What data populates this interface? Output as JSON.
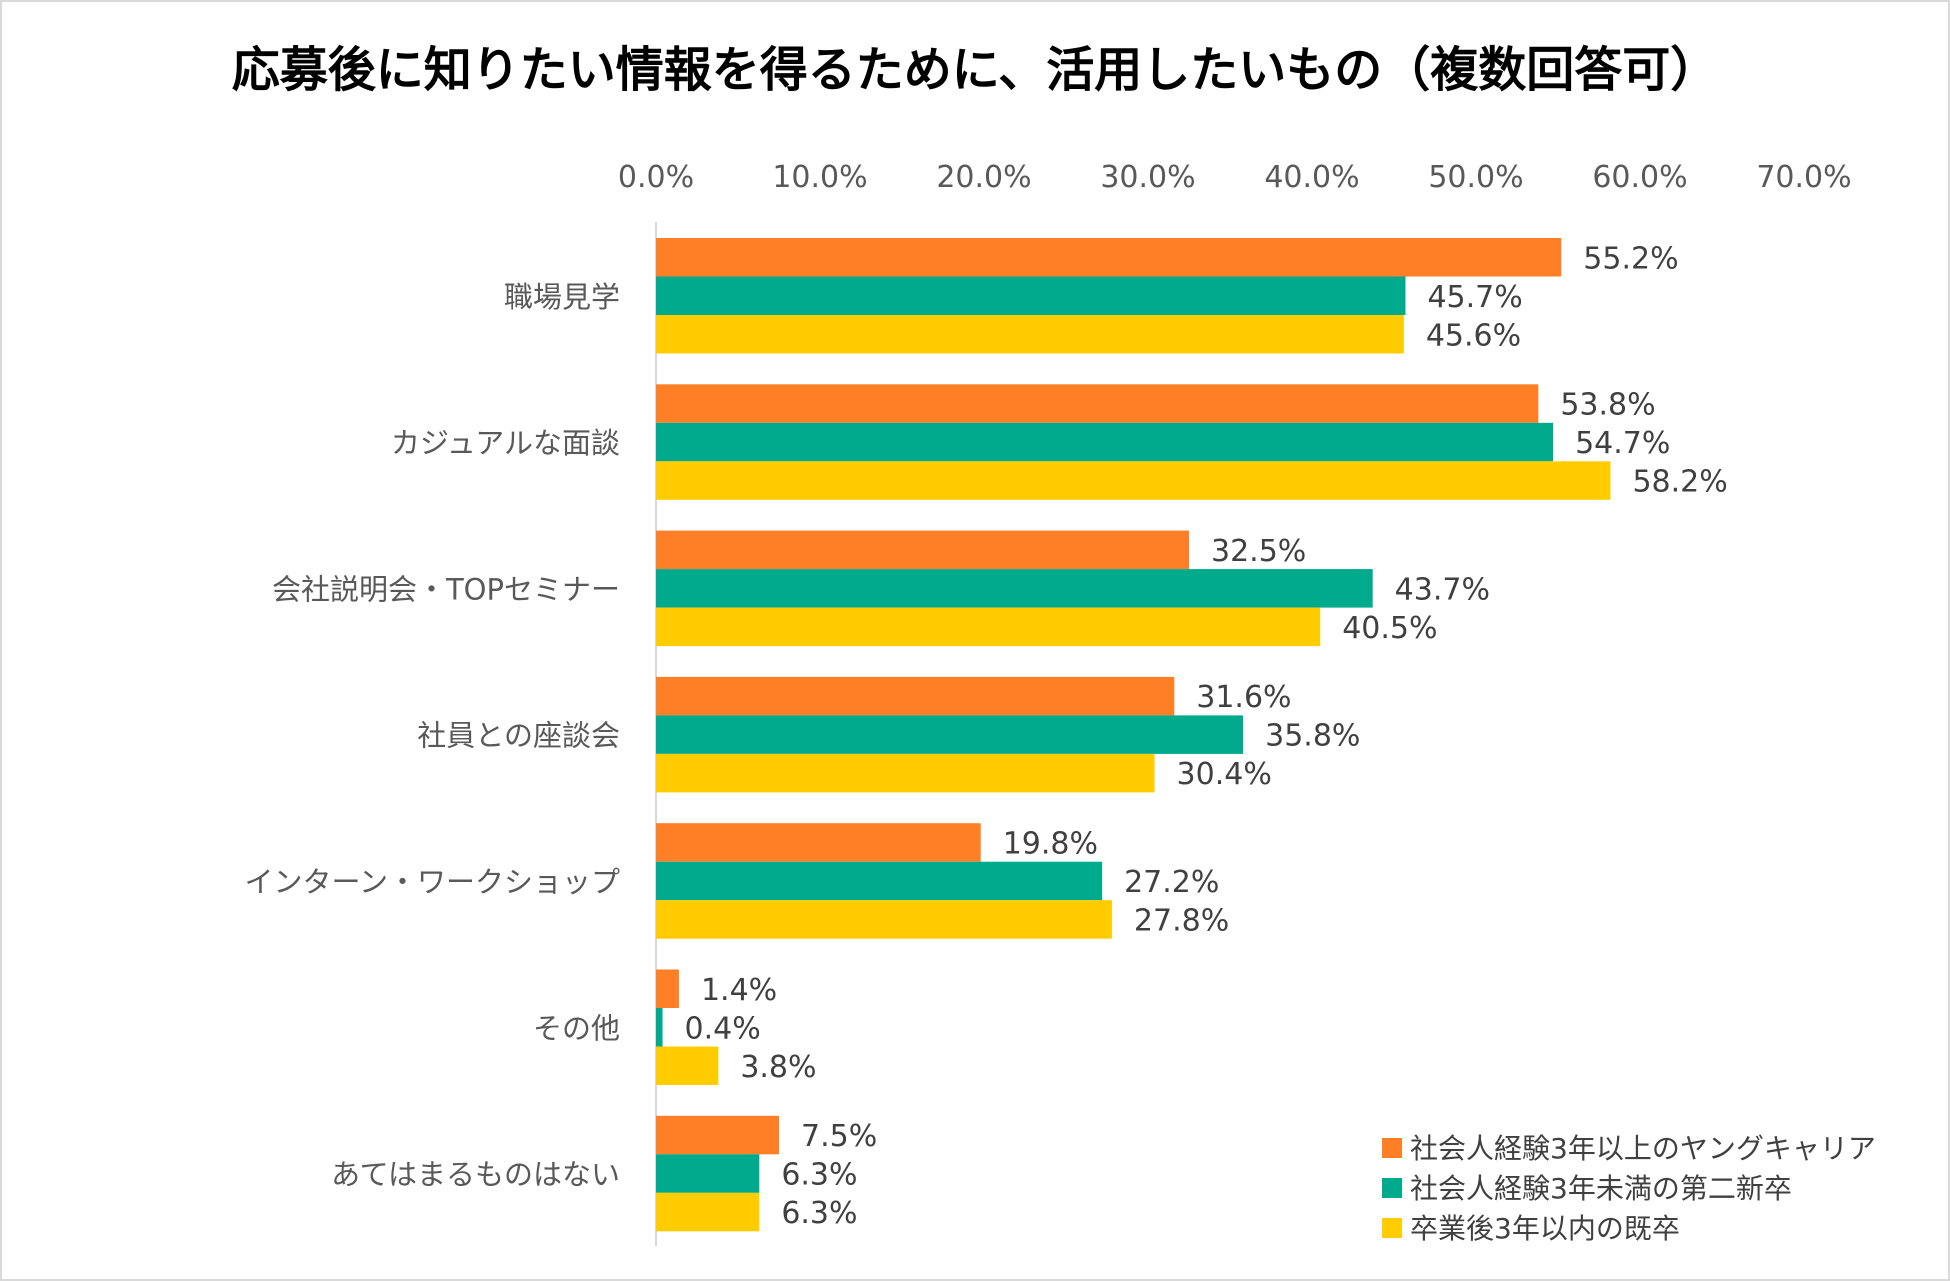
{
  "chart_data": {
    "type": "bar",
    "orientation": "horizontal",
    "title": "応募後に知りたい情報を得るために、活用したいもの（複数回答可）",
    "xlim": [
      0,
      70
    ],
    "xticks": [
      "0.0%",
      "10.0%",
      "20.0%",
      "30.0%",
      "40.0%",
      "50.0%",
      "60.0%",
      "70.0%"
    ],
    "x_axis_position": "top",
    "grid": false,
    "legend_position": "bottom-right",
    "categories": [
      "職場見学",
      "カジュアルな面談",
      "会社説明会・TOPセミナー",
      "社員との座談会",
      "インターン・ワークショップ",
      "その他",
      "あてはまるものはない"
    ],
    "series": [
      {
        "name": "社会人経験3年以上のヤングキャリア",
        "color": "#FF7F27",
        "values": [
          55.2,
          53.8,
          32.5,
          31.6,
          19.8,
          1.4,
          7.5
        ],
        "labels": [
          "55.2%",
          "53.8%",
          "32.5%",
          "31.6%",
          "19.8%",
          "1.4%",
          "7.5%"
        ]
      },
      {
        "name": "社会人経験3年未満の第二新卒",
        "color": "#00AA8C",
        "values": [
          45.7,
          54.7,
          43.7,
          35.8,
          27.2,
          0.4,
          6.3
        ],
        "labels": [
          "45.7%",
          "54.7%",
          "43.7%",
          "35.8%",
          "27.2%",
          "0.4%",
          "6.3%"
        ]
      },
      {
        "name": "卒業後3年以内の既卒",
        "color": "#FFCC00",
        "values": [
          45.6,
          58.2,
          40.5,
          30.4,
          27.8,
          3.8,
          6.3
        ],
        "labels": [
          "45.6%",
          "58.2%",
          "40.5%",
          "30.4%",
          "27.8%",
          "3.8%",
          "6.3%"
        ]
      }
    ]
  }
}
